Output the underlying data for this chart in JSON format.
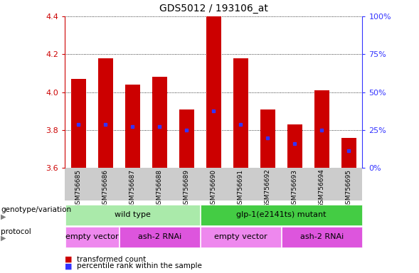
{
  "title": "GDS5012 / 193106_at",
  "samples": [
    "GSM756685",
    "GSM756686",
    "GSM756687",
    "GSM756688",
    "GSM756689",
    "GSM756690",
    "GSM756691",
    "GSM756692",
    "GSM756693",
    "GSM756694",
    "GSM756695"
  ],
  "transformed_count": [
    4.07,
    4.18,
    4.04,
    4.08,
    3.91,
    4.4,
    4.18,
    3.91,
    3.83,
    4.01,
    3.76
  ],
  "percentile_rank": [
    3.83,
    3.83,
    3.82,
    3.82,
    3.8,
    3.9,
    3.83,
    3.76,
    3.73,
    3.8,
    3.69
  ],
  "ylim": [
    3.6,
    4.4
  ],
  "yticks": [
    3.6,
    3.8,
    4.0,
    4.2,
    4.4
  ],
  "y2ticks": [
    0,
    25,
    50,
    75,
    100
  ],
  "bar_color": "#cc0000",
  "dot_color": "#3333ff",
  "bar_width": 0.55,
  "genotype_groups": [
    {
      "label": "wild type",
      "start": 0,
      "end": 4,
      "color": "#aaeaaa"
    },
    {
      "label": "glp-1(e2141ts) mutant",
      "start": 5,
      "end": 10,
      "color": "#44cc44"
    }
  ],
  "protocol_groups": [
    {
      "label": "empty vector",
      "start": 0,
      "end": 1,
      "color": "#ee88ee"
    },
    {
      "label": "ash-2 RNAi",
      "start": 2,
      "end": 4,
      "color": "#dd55dd"
    },
    {
      "label": "empty vector",
      "start": 5,
      "end": 7,
      "color": "#ee88ee"
    },
    {
      "label": "ash-2 RNAi",
      "start": 8,
      "end": 10,
      "color": "#dd55dd"
    }
  ],
  "legend_items": [
    {
      "label": "transformed count",
      "color": "#cc0000"
    },
    {
      "label": "percentile rank within the sample",
      "color": "#3333ff"
    }
  ],
  "left_label_genotype": "genotype/variation",
  "left_label_protocol": "protocol",
  "title_color": "#000000",
  "left_axis_color": "#cc0000",
  "right_axis_color": "#3333ff",
  "bg_color": "#ffffff",
  "tick_area_color": "#cccccc"
}
